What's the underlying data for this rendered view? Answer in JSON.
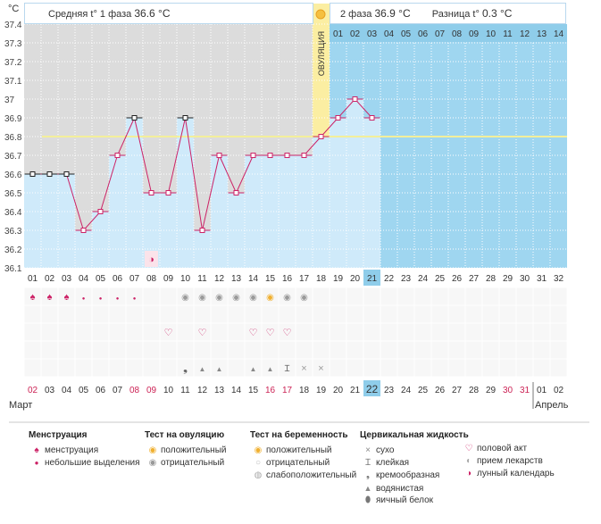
{
  "header": {
    "unit_label": "°C",
    "phase1_label": "Средняя t° 1 фаза",
    "phase1_value": "36.6 °C",
    "phase2_label": "2 фаза",
    "phase2_value": "36.9 °C",
    "diff_label": "Разница t°",
    "diff_value": "0.3 °C"
  },
  "chart_data": {
    "type": "bar",
    "y_ticks": [
      "37.4",
      "37.3",
      "37.2",
      "37.1",
      "37",
      "36.9",
      "36.8",
      "36.7",
      "36.6",
      "36.5",
      "36.4",
      "36.3",
      "36.2",
      "36.1"
    ],
    "ylim": [
      36.1,
      37.4
    ],
    "cycle_days": [
      "01",
      "02",
      "03",
      "04",
      "05",
      "06",
      "07",
      "08",
      "09",
      "10",
      "11",
      "12",
      "13",
      "14",
      "15",
      "16",
      "17",
      "18",
      "19",
      "20",
      "21",
      "22",
      "23",
      "24",
      "25",
      "26",
      "27",
      "28",
      "29",
      "30",
      "31",
      "32"
    ],
    "temperatures": [
      36.6,
      36.6,
      36.6,
      36.3,
      36.4,
      36.7,
      36.9,
      36.5,
      36.5,
      36.9,
      36.3,
      36.7,
      36.5,
      36.7,
      36.7,
      36.7,
      36.7,
      36.8,
      36.9,
      37.0,
      36.9
    ],
    "boxed_days": [
      1,
      2,
      3,
      7,
      10
    ],
    "coverline": 36.8,
    "ovulation_day": 18,
    "ovulation_label": "ОВУЛЯЦИЯ",
    "post_ovulation_days": [
      "01",
      "02",
      "03",
      "04",
      "05",
      "06",
      "07",
      "08",
      "09",
      "10",
      "11",
      "12",
      "13",
      "14"
    ],
    "highlight_cycle_day": 21,
    "calendar_dates": [
      "02",
      "03",
      "04",
      "05",
      "06",
      "07",
      "08",
      "09",
      "10",
      "11",
      "12",
      "13",
      "14",
      "15",
      "16",
      "17",
      "18",
      "19",
      "20",
      "21",
      "22",
      "23",
      "24",
      "25",
      "26",
      "27",
      "28",
      "29",
      "30",
      "31",
      "01",
      "02"
    ],
    "red_dates": [
      1,
      7,
      8,
      15,
      16,
      29,
      30
    ],
    "highlight_date_index": 21,
    "month_left": "Март",
    "month_right": "Апрель",
    "symbols": {
      "menstruation": [
        1,
        2,
        3
      ],
      "spotting": [
        4,
        5,
        6,
        7
      ],
      "moon": [
        8
      ],
      "ovulation_test_negative": [
        10,
        11,
        12,
        13,
        14,
        16,
        17
      ],
      "ovulation_test_positive": [
        15
      ],
      "intercourse": [
        9,
        11,
        14,
        15,
        16
      ],
      "mucus_creamy": [
        10
      ],
      "mucus_watery": [
        11,
        12,
        14,
        15
      ],
      "mucus_sticky": [
        16
      ],
      "mucus_dry": [
        17,
        18
      ]
    }
  },
  "legend": {
    "menstruation": {
      "title": "Менструация",
      "items": [
        "менструация",
        "небольшие выделения"
      ]
    },
    "ovulation_test": {
      "title": "Тест на овуляцию",
      "items": [
        "положительный",
        "отрицательный"
      ]
    },
    "pregnancy_test": {
      "title": "Тест на беременность",
      "items": [
        "положительный",
        "отрицательный",
        "слабоположительный"
      ]
    },
    "cervical_fluid": {
      "title": "Цервикальная жидкость",
      "items": [
        "сухо",
        "клейкая",
        "кремообразная",
        "водянистая",
        "яичный белок"
      ]
    },
    "other": {
      "items": [
        "половой акт",
        "прием лекарств",
        "лунный календарь"
      ]
    }
  },
  "colors": {
    "pre_bg": "#dcdcdc",
    "post_bg": "#9fd6f0",
    "bar_fill": "#cfeafa",
    "line": "#cc2266",
    "coverline": "#f3ef9a",
    "ovulation_band": "#fbeea2",
    "grid_text": "#555555",
    "red_text": "#cc2255",
    "highlight_cell": "#8fcdea"
  }
}
